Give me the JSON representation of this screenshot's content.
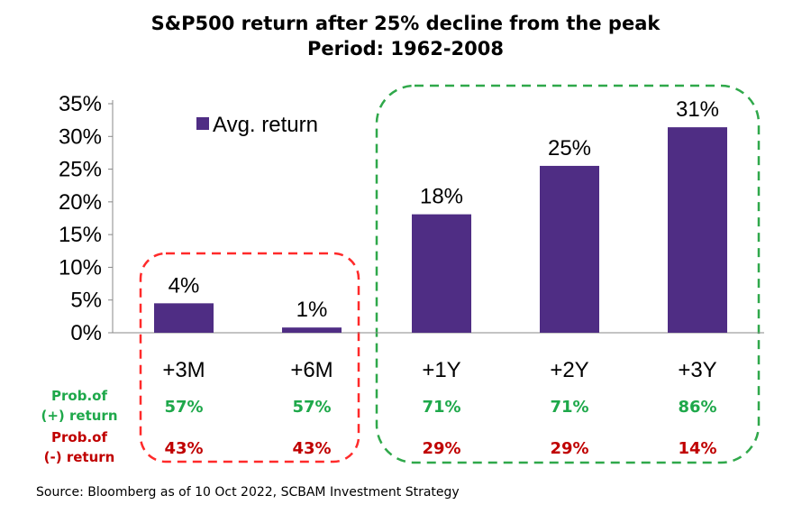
{
  "title": "S&P500 return after 25% decline from the peak",
  "subtitle": "Period: 1962-2008",
  "colors": {
    "bar": "#4f2d84",
    "positive": "#1ea84a",
    "negative": "#c00000",
    "green_box": "#2fa84a",
    "red_box": "#ff2a2a"
  },
  "chart_data": {
    "type": "bar",
    "categories": [
      "+3M",
      "+6M",
      "+1Y",
      "+2Y",
      "+3Y"
    ],
    "series": [
      {
        "name": "Avg. return",
        "values": [
          4.5,
          0.8,
          18.1,
          25.5,
          31.4
        ]
      }
    ],
    "data_labels": [
      "4%",
      "1%",
      "18%",
      "25%",
      "31%"
    ],
    "y_ticks": [
      "0%",
      "5%",
      "10%",
      "15%",
      "20%",
      "25%",
      "30%",
      "35%"
    ],
    "ylim": [
      0,
      35
    ],
    "legend": "upper-left inside plot",
    "grid": false
  },
  "prob_table": {
    "positive_label_line1": "Prob.of",
    "positive_label_line2": "(+) return",
    "negative_label_line1": "Prob.of",
    "negative_label_line2": "(-) return",
    "positive": [
      "57%",
      "57%",
      "71%",
      "71%",
      "86%"
    ],
    "negative": [
      "43%",
      "43%",
      "29%",
      "29%",
      "14%"
    ]
  },
  "source": "Source: Bloomberg as of 10 Oct 2022, SCBAM Investment Strategy"
}
